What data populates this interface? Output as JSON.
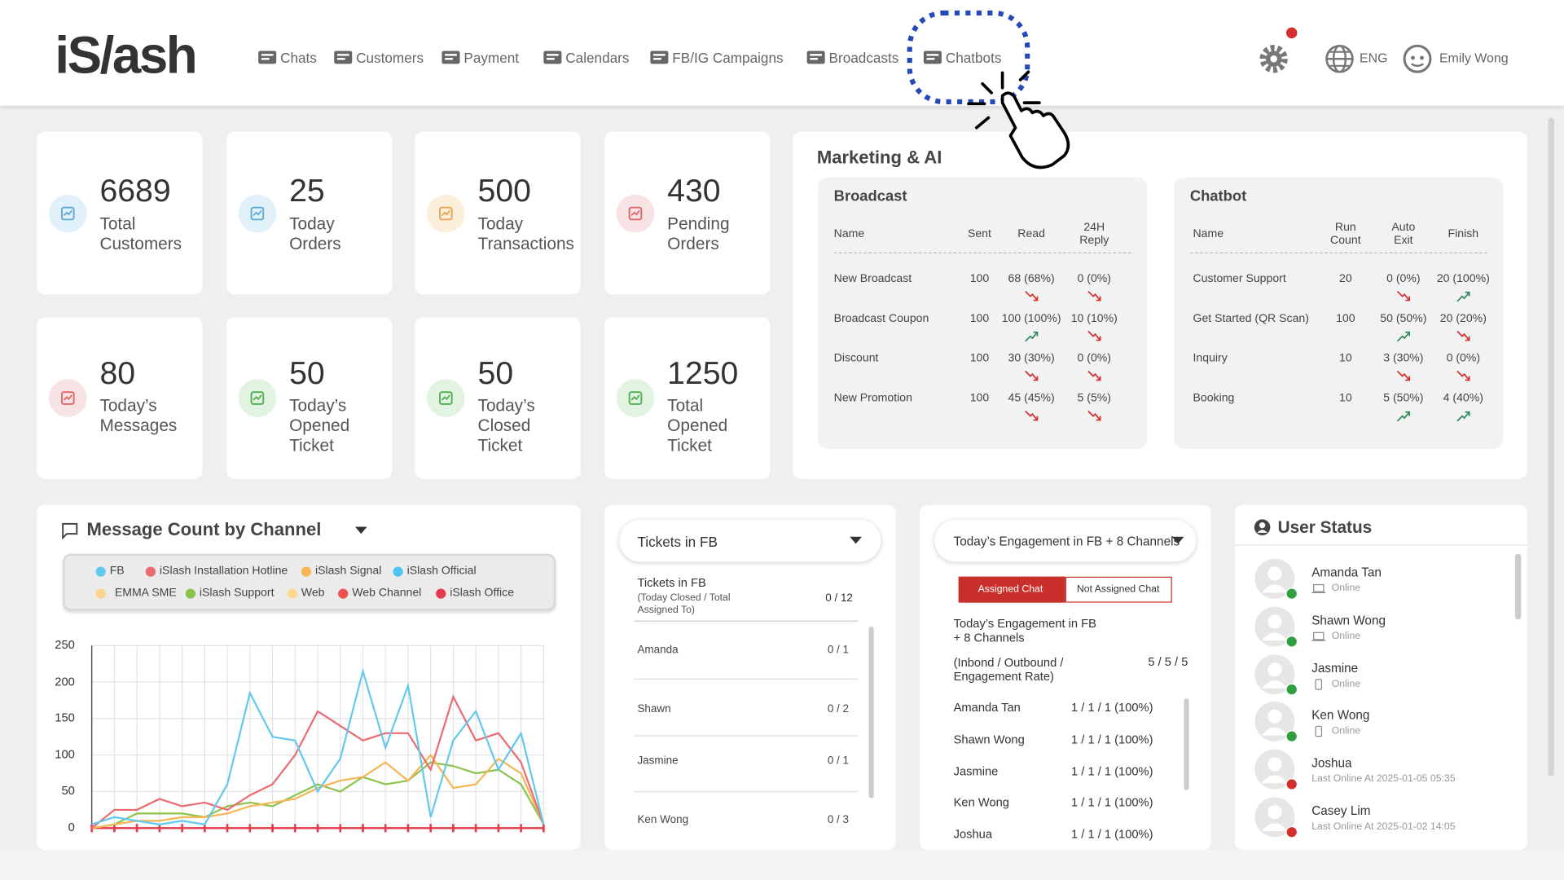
{
  "header": {
    "logo": "iS/ash",
    "nav": [
      "Chats",
      "Customers",
      "Payment",
      "Calendars",
      "FB/IG Campaigns",
      "Broadcasts",
      "Chatbots"
    ],
    "language": "ENG",
    "user": "Emily Wong"
  },
  "stats": [
    {
      "value": 6689,
      "label": "Total Customers"
    },
    {
      "value": 25,
      "label": "Today Orders"
    },
    {
      "value": 500,
      "label": "Today Transactions"
    },
    {
      "value": 430,
      "label": "Pending Orders"
    },
    {
      "value": 80,
      "label": "Today’s Messages"
    },
    {
      "value": 50,
      "label": "Today’s Opened Ticket"
    },
    {
      "value": 50,
      "label": "Today’s Closed Ticket"
    },
    {
      "value": 1250,
      "label": "Total Opened Ticket"
    }
  ],
  "marketing": {
    "title": "Marketing & AI",
    "broadcast": {
      "title": "Broadcast",
      "columns": [
        "Name",
        "Sent",
        "Read",
        "24H Reply"
      ],
      "rows": [
        [
          "New Broadcast",
          "100",
          "68 (68%)",
          "0 (0%)"
        ],
        [
          "Broadcast Coupon",
          "100",
          "100 (100%)",
          "10 (10%)"
        ],
        [
          "Discount",
          "100",
          "30 (30%)",
          "0 (0%)"
        ],
        [
          "New Promotion",
          "100",
          "45 (45%)",
          "5 (5%)"
        ]
      ],
      "trends": [
        [
          "down",
          "down"
        ],
        [
          "up",
          "down"
        ],
        [
          "down",
          "down"
        ],
        [
          "down",
          "down"
        ]
      ]
    },
    "chatbot": {
      "title": "Chatbot",
      "columns": [
        "Name",
        "Run Count",
        "Auto Exit",
        "Finish"
      ],
      "rows": [
        [
          "Customer Support",
          "20",
          "0 (0%)",
          "20 (100%)"
        ],
        [
          "Get Started (QR Scan)",
          "100",
          "50 (50%)",
          "20 (20%)"
        ],
        [
          "Inquiry",
          "10",
          "3 (30%)",
          "0 (0%)"
        ],
        [
          "Booking",
          "10",
          "5 (50%)",
          "4 (40%)"
        ]
      ],
      "trends": [
        [
          "down",
          "up"
        ],
        [
          "up",
          "down"
        ],
        [
          "down",
          "down"
        ],
        [
          "up",
          "up"
        ]
      ]
    }
  },
  "chart_data": {
    "type": "line",
    "title": "Message Count by Channel",
    "categories": [
      null,
      null,
      null,
      null,
      null,
      null,
      null,
      null,
      null,
      null,
      null,
      null,
      null,
      null,
      null,
      null,
      null,
      null,
      null,
      null,
      null
    ],
    "series": [
      {
        "name": "FB",
        "color": "#62c9ee",
        "values": [
          5,
          15,
          10,
          5,
          10,
          5,
          60,
          185,
          125,
          120,
          50,
          95,
          215,
          110,
          195,
          15,
          120,
          160,
          80,
          130,
          5
        ]
      },
      {
        "name": "iSlash Installation Hotline",
        "color": "#ec6a72",
        "values": [
          0,
          25,
          25,
          40,
          30,
          35,
          25,
          45,
          60,
          100,
          160,
          140,
          120,
          130,
          130,
          80,
          180,
          120,
          130,
          90,
          5
        ]
      },
      {
        "name": "iSlash Signal",
        "color": "#f6b655",
        "values": [
          0,
          5,
          10,
          10,
          15,
          15,
          20,
          30,
          35,
          40,
          55,
          65,
          70,
          90,
          65,
          100,
          55,
          60,
          95,
          75,
          5
        ]
      },
      {
        "name": "iSlash Official",
        "color": "#4fc3f7",
        "values": [
          0,
          0,
          0,
          0,
          0,
          0,
          0,
          0,
          0,
          0,
          0,
          0,
          0,
          0,
          0,
          0,
          0,
          0,
          0,
          0,
          0
        ]
      },
      {
        "name": "EMMA SME",
        "color": "#fbd38d",
        "values": [
          0,
          0,
          0,
          0,
          0,
          0,
          0,
          0,
          0,
          0,
          0,
          0,
          0,
          0,
          0,
          0,
          0,
          0,
          0,
          0,
          0
        ]
      },
      {
        "name": "iSlash Support",
        "color": "#8bc34a",
        "values": [
          0,
          5,
          20,
          20,
          20,
          15,
          30,
          35,
          30,
          45,
          60,
          50,
          70,
          60,
          65,
          90,
          85,
          75,
          80,
          60,
          5
        ]
      },
      {
        "name": "Web",
        "color": "#fcd790",
        "values": [
          0,
          0,
          0,
          0,
          0,
          0,
          0,
          0,
          0,
          0,
          0,
          0,
          0,
          0,
          0,
          0,
          0,
          0,
          0,
          0,
          0
        ]
      },
      {
        "name": "Web Channel",
        "color": "#ef5350",
        "values": [
          0,
          0,
          0,
          0,
          0,
          0,
          0,
          0,
          0,
          0,
          0,
          0,
          0,
          0,
          0,
          0,
          0,
          0,
          0,
          0,
          0
        ]
      },
      {
        "name": "iSlash Office",
        "color": "#e53950",
        "values": [
          0,
          0,
          0,
          0,
          0,
          0,
          0,
          0,
          0,
          0,
          0,
          0,
          0,
          0,
          0,
          0,
          0,
          0,
          0,
          0,
          0
        ]
      }
    ],
    "ylim": [
      0,
      250
    ],
    "yticks": [
      0,
      50,
      100,
      150,
      200,
      250
    ],
    "grid": true
  },
  "tickets": {
    "selector": "Tickets in FB",
    "title": "Tickets in FB",
    "subtitle": "(Today Closed / Total Assigned To)",
    "total": "0 / 12",
    "rows": [
      {
        "name": "Amanda",
        "value": "0 / 1"
      },
      {
        "name": "Shawn",
        "value": "0 / 2"
      },
      {
        "name": "Jasmine",
        "value": "0 / 1"
      },
      {
        "name": "Ken Wong",
        "value": "0 / 3"
      }
    ]
  },
  "engagement": {
    "selector": "Today’s Engagement in FB + 8 Channels",
    "tabs": [
      "Assigned Chat",
      "Not Assigned Chat"
    ],
    "title": "Today’s Engagement in FB + 8 Channels",
    "subtitle": "(Inbond / Outbound / Engagement Rate)",
    "total": "5 / 5 / 5",
    "rows": [
      {
        "name": "Amanda Tan",
        "value": "1 / 1 / 1 (100%)"
      },
      {
        "name": "Shawn Wong",
        "value": "1 / 1 / 1 (100%)"
      },
      {
        "name": "Jasmine",
        "value": "1 / 1 / 1 (100%)"
      },
      {
        "name": "Ken Wong",
        "value": "1 / 1 / 1 (100%)"
      },
      {
        "name": "Joshua",
        "value": "1 / 1 / 1 (100%)"
      }
    ]
  },
  "user_status": {
    "title": "User Status",
    "users": [
      {
        "name": "Amanda Tan",
        "status": "Online",
        "online": true,
        "device": "laptop"
      },
      {
        "name": "Shawn Wong",
        "status": "Online",
        "online": true,
        "device": "laptop"
      },
      {
        "name": "Jasmine",
        "status": "Online",
        "online": true,
        "device": "phone"
      },
      {
        "name": "Ken Wong",
        "status": "Online",
        "online": true,
        "device": "phone"
      },
      {
        "name": "Joshua",
        "status": "Last Online At 2025-01-05 05:35",
        "online": false
      },
      {
        "name": "Casey Lim",
        "status": "Last Online At 2025-01-02 14:05",
        "online": false
      }
    ]
  }
}
